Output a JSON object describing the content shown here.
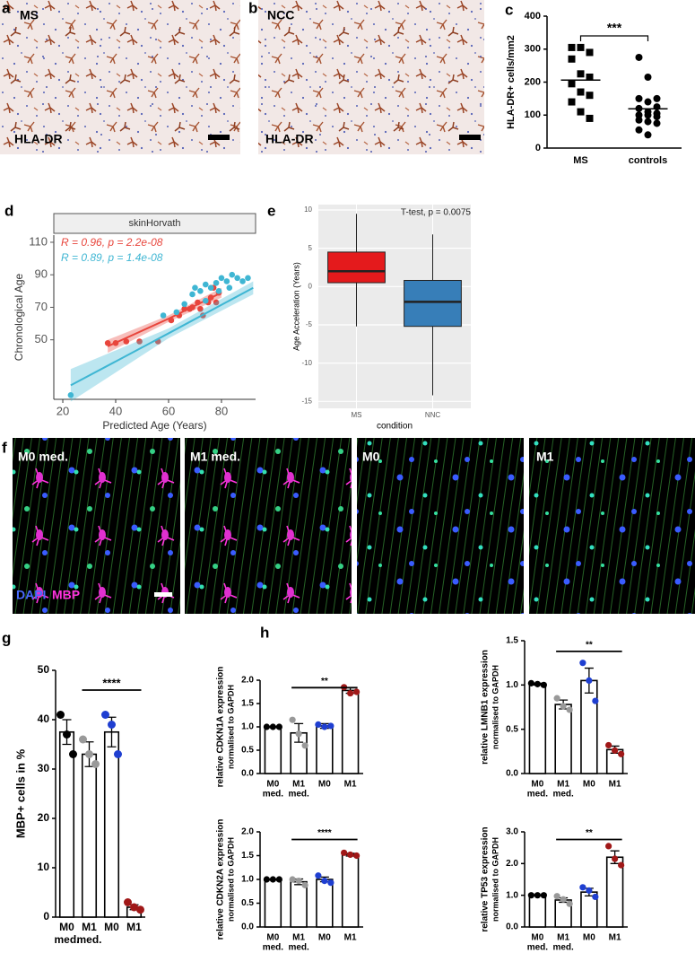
{
  "panel_labels": [
    "a",
    "b",
    "c",
    "d",
    "e",
    "f",
    "g",
    "h"
  ],
  "histology": [
    {
      "group": "MS",
      "stain": "HLA-DR"
    },
    {
      "group": "NCC",
      "stain": "HLA-DR"
    }
  ],
  "fluorescence": {
    "conditions": [
      "M0 med.",
      "M1 med.",
      "M0",
      "M1"
    ],
    "stains": [
      {
        "text": "DAPI",
        "color": "#4a6bff"
      },
      {
        "text": "MBP",
        "color": "#ff33dd"
      }
    ]
  },
  "chart_data": [
    {
      "type": "dot",
      "ylabel": "HLA-DR+ cells/mm2",
      "categories": [
        "MS",
        "controls"
      ],
      "points": [
        [
          305,
          305,
          290,
          270,
          225,
          215,
          195,
          170,
          160,
          140,
          110,
          90
        ],
        [
          275,
          215,
          150,
          150,
          140,
          125,
          120,
          110,
          105,
          100,
          100,
          95,
          85,
          80,
          75,
          55,
          40
        ]
      ],
      "means": [
        206,
        119
      ],
      "markers": [
        "square",
        "circle"
      ],
      "color": "#000000",
      "ylim": [
        0,
        400
      ],
      "yticks": [
        0,
        100,
        200,
        300,
        400
      ],
      "significance": {
        "label": "***",
        "from": 0,
        "to": 1
      }
    },
    {
      "type": "scatter",
      "title": "skinHorvath",
      "xlabel": "Predicted Age (Years)",
      "ylabel": "Chronological Age",
      "series": [
        {
          "annotation": "R = 0.96, p = 2.2e-08",
          "color": "#e8453c",
          "x": [
            37,
            40,
            44,
            49,
            56,
            61,
            64,
            66,
            68,
            69,
            71,
            72,
            73,
            75,
            76,
            78,
            77,
            79
          ],
          "values": [
            48,
            48,
            49,
            49,
            49,
            62,
            65,
            69,
            69,
            70,
            73,
            69,
            65,
            73,
            76,
            73,
            82,
            79
          ],
          "fit": {
            "x": [
              37,
              60,
              80
            ],
            "y": [
              46,
              63,
              79
            ],
            "lower": [
              42,
              61,
              76
            ],
            "upper": [
              50,
              65,
              82
            ]
          }
        },
        {
          "annotation": "R = 0.89, p = 1.4e-08",
          "color": "#3fb6d3",
          "x": [
            23,
            58,
            63,
            66,
            69,
            70,
            72,
            74,
            76,
            78,
            80,
            82,
            84,
            86,
            88,
            90,
            79,
            83,
            74
          ],
          "values": [
            16,
            65,
            67,
            72,
            78,
            82,
            80,
            84,
            82,
            85,
            88,
            86,
            90,
            88,
            86,
            88,
            80,
            82,
            74
          ],
          "fit": {
            "x": [
              23,
              60,
              92
            ],
            "y": [
              22,
              54,
              82
            ],
            "lower": [
              12,
              51,
              78
            ],
            "upper": [
              32,
              57,
              86
            ]
          }
        }
      ],
      "xlim": [
        16.6,
        92.9
      ],
      "xticks": [
        20,
        40,
        60,
        80
      ],
      "ylim": [
        13.4,
        114.4
      ],
      "yticks": [
        50,
        70,
        90,
        110
      ]
    },
    {
      "type": "box",
      "annotation": "T-test, p = 0.0075",
      "xlabel": "condition",
      "ylabel": "Age Acceleration (Years)",
      "categories": [
        "MS",
        "NNC"
      ],
      "colors": [
        "#e41a1c",
        "#377eb8"
      ],
      "boxes": [
        {
          "low": -5.2,
          "q1": 0.5,
          "median": 2,
          "q3": 4.5,
          "high": 9.5
        },
        {
          "low": -14.2,
          "q1": -5.2,
          "median": -2,
          "q3": 0.8,
          "high": 6.8
        }
      ],
      "ylim": [
        -15.9,
        10.7
      ],
      "yticks": [
        -15,
        -10,
        -5,
        0,
        5,
        10
      ],
      "grid": true
    },
    {
      "type": "bar",
      "ylabel": "MBP+ cells in %",
      "categories": [
        "M0",
        "M1",
        "M0",
        "M1"
      ],
      "category_sublabels": [
        "med.",
        "med.",
        null,
        null
      ],
      "values": [
        37.5,
        33,
        37.5,
        2
      ],
      "errors": [
        2.5,
        2.5,
        3,
        0.5
      ],
      "points": [
        [
          41,
          37,
          33
        ],
        [
          36,
          33,
          31
        ],
        [
          41,
          39,
          33
        ],
        [
          3,
          2,
          1.5
        ]
      ],
      "point_colors": [
        "#000000",
        "#999999",
        "#1f3fd1",
        "#a01818"
      ],
      "ylim": [
        0,
        50
      ],
      "yticks": [
        0,
        10,
        20,
        30,
        40,
        50
      ],
      "significance": {
        "label": "****",
        "from": 1,
        "to": 3
      }
    },
    {
      "type": "bar",
      "ylabel": "relative CDKN1A expression",
      "ylabel_note": "normalised to GAPDH",
      "categories": [
        "M0",
        "M1",
        "M0",
        "M1"
      ],
      "category_sublabels": [
        "med.",
        "med.",
        null,
        null
      ],
      "values": [
        1.0,
        0.87,
        1.02,
        1.78
      ],
      "errors": [
        0.01,
        0.2,
        0.05,
        0.06
      ],
      "points": [
        [
          1,
          1,
          1
        ],
        [
          1.15,
          0.85,
          0.6
        ],
        [
          1.05,
          1.0,
          1.02
        ],
        [
          1.85,
          1.72,
          1.75
        ]
      ],
      "point_colors": [
        "#000000",
        "#999999",
        "#1f3fd1",
        "#a01818"
      ],
      "ylim": [
        0,
        2
      ],
      "yticks": [
        {
          "value": 0,
          "label": "0.0"
        },
        0.5,
        {
          "value": 1,
          "label": "1.0"
        },
        1.5,
        {
          "value": 2,
          "label": "2.0"
        }
      ],
      "significance": {
        "label": "**",
        "from": 1,
        "to": 3
      }
    },
    {
      "type": "bar",
      "ylabel": "relative LMNB1 expression",
      "ylabel_note": "normalised to GAPDH",
      "categories": [
        "M0",
        "M1",
        "M0",
        "M1"
      ],
      "category_sublabels": [
        "med.",
        "med.",
        null,
        null
      ],
      "values": [
        1.01,
        0.78,
        1.05,
        0.27
      ],
      "errors": [
        0.01,
        0.05,
        0.14,
        0.04
      ],
      "points": [
        [
          1.02,
          1.01,
          1.0
        ],
        [
          0.85,
          0.76,
          0.72
        ],
        [
          1.25,
          1.05,
          0.82
        ],
        [
          0.32,
          0.26,
          0.22
        ]
      ],
      "point_colors": [
        "#000000",
        "#999999",
        "#1f3fd1",
        "#a01818"
      ],
      "ylim": [
        0,
        1.5
      ],
      "yticks": [
        {
          "value": 0,
          "label": "0.0"
        },
        0.5,
        {
          "value": 1,
          "label": "1.0"
        },
        1.5
      ],
      "significance": {
        "label": "**",
        "from": 1,
        "to": 3
      }
    },
    {
      "type": "bar",
      "ylabel": "relative CDKN2A expression",
      "ylabel_note": "normalised to GAPDH",
      "categories": [
        "M0",
        "M1",
        "M0",
        "M1"
      ],
      "category_sublabels": [
        "med.",
        "med.",
        null,
        null
      ],
      "values": [
        1.0,
        0.95,
        1.0,
        1.52
      ],
      "errors": [
        0.01,
        0.06,
        0.05,
        0.03
      ],
      "points": [
        [
          1,
          1,
          1
        ],
        [
          1.0,
          0.97,
          0.88
        ],
        [
          1.08,
          0.97,
          0.93
        ],
        [
          1.56,
          1.52,
          1.5
        ]
      ],
      "point_colors": [
        "#000000",
        "#999999",
        "#1f3fd1",
        "#a01818"
      ],
      "ylim": [
        0,
        2
      ],
      "yticks": [
        {
          "value": 0,
          "label": "0.0"
        },
        0.5,
        {
          "value": 1,
          "label": "1.0"
        },
        1.5,
        {
          "value": 2,
          "label": "2.0"
        }
      ],
      "significance": {
        "label": "****",
        "from": 1,
        "to": 3
      }
    },
    {
      "type": "bar",
      "ylabel": "relative TP53 expression",
      "ylabel_note": "normalised to GAPDH",
      "categories": [
        "M0",
        "M1",
        "M0",
        "M1"
      ],
      "category_sublabels": [
        "med.",
        "med.",
        null,
        null
      ],
      "values": [
        1.0,
        0.85,
        1.1,
        2.2
      ],
      "errors": [
        0.01,
        0.07,
        0.12,
        0.2
      ],
      "points": [
        [
          1,
          1,
          1
        ],
        [
          0.97,
          0.87,
          0.73
        ],
        [
          1.25,
          1.15,
          0.95
        ],
        [
          2.55,
          2.15,
          1.95
        ]
      ],
      "point_colors": [
        "#000000",
        "#999999",
        "#1f3fd1",
        "#a01818"
      ],
      "ylim": [
        0,
        3
      ],
      "yticks": [
        {
          "value": 0,
          "label": "0.0"
        },
        {
          "value": 1,
          "label": "1.0"
        },
        {
          "value": 2,
          "label": "2.0"
        },
        {
          "value": 3,
          "label": "3.0"
        }
      ],
      "significance": {
        "label": "**",
        "from": 1,
        "to": 3
      }
    }
  ]
}
